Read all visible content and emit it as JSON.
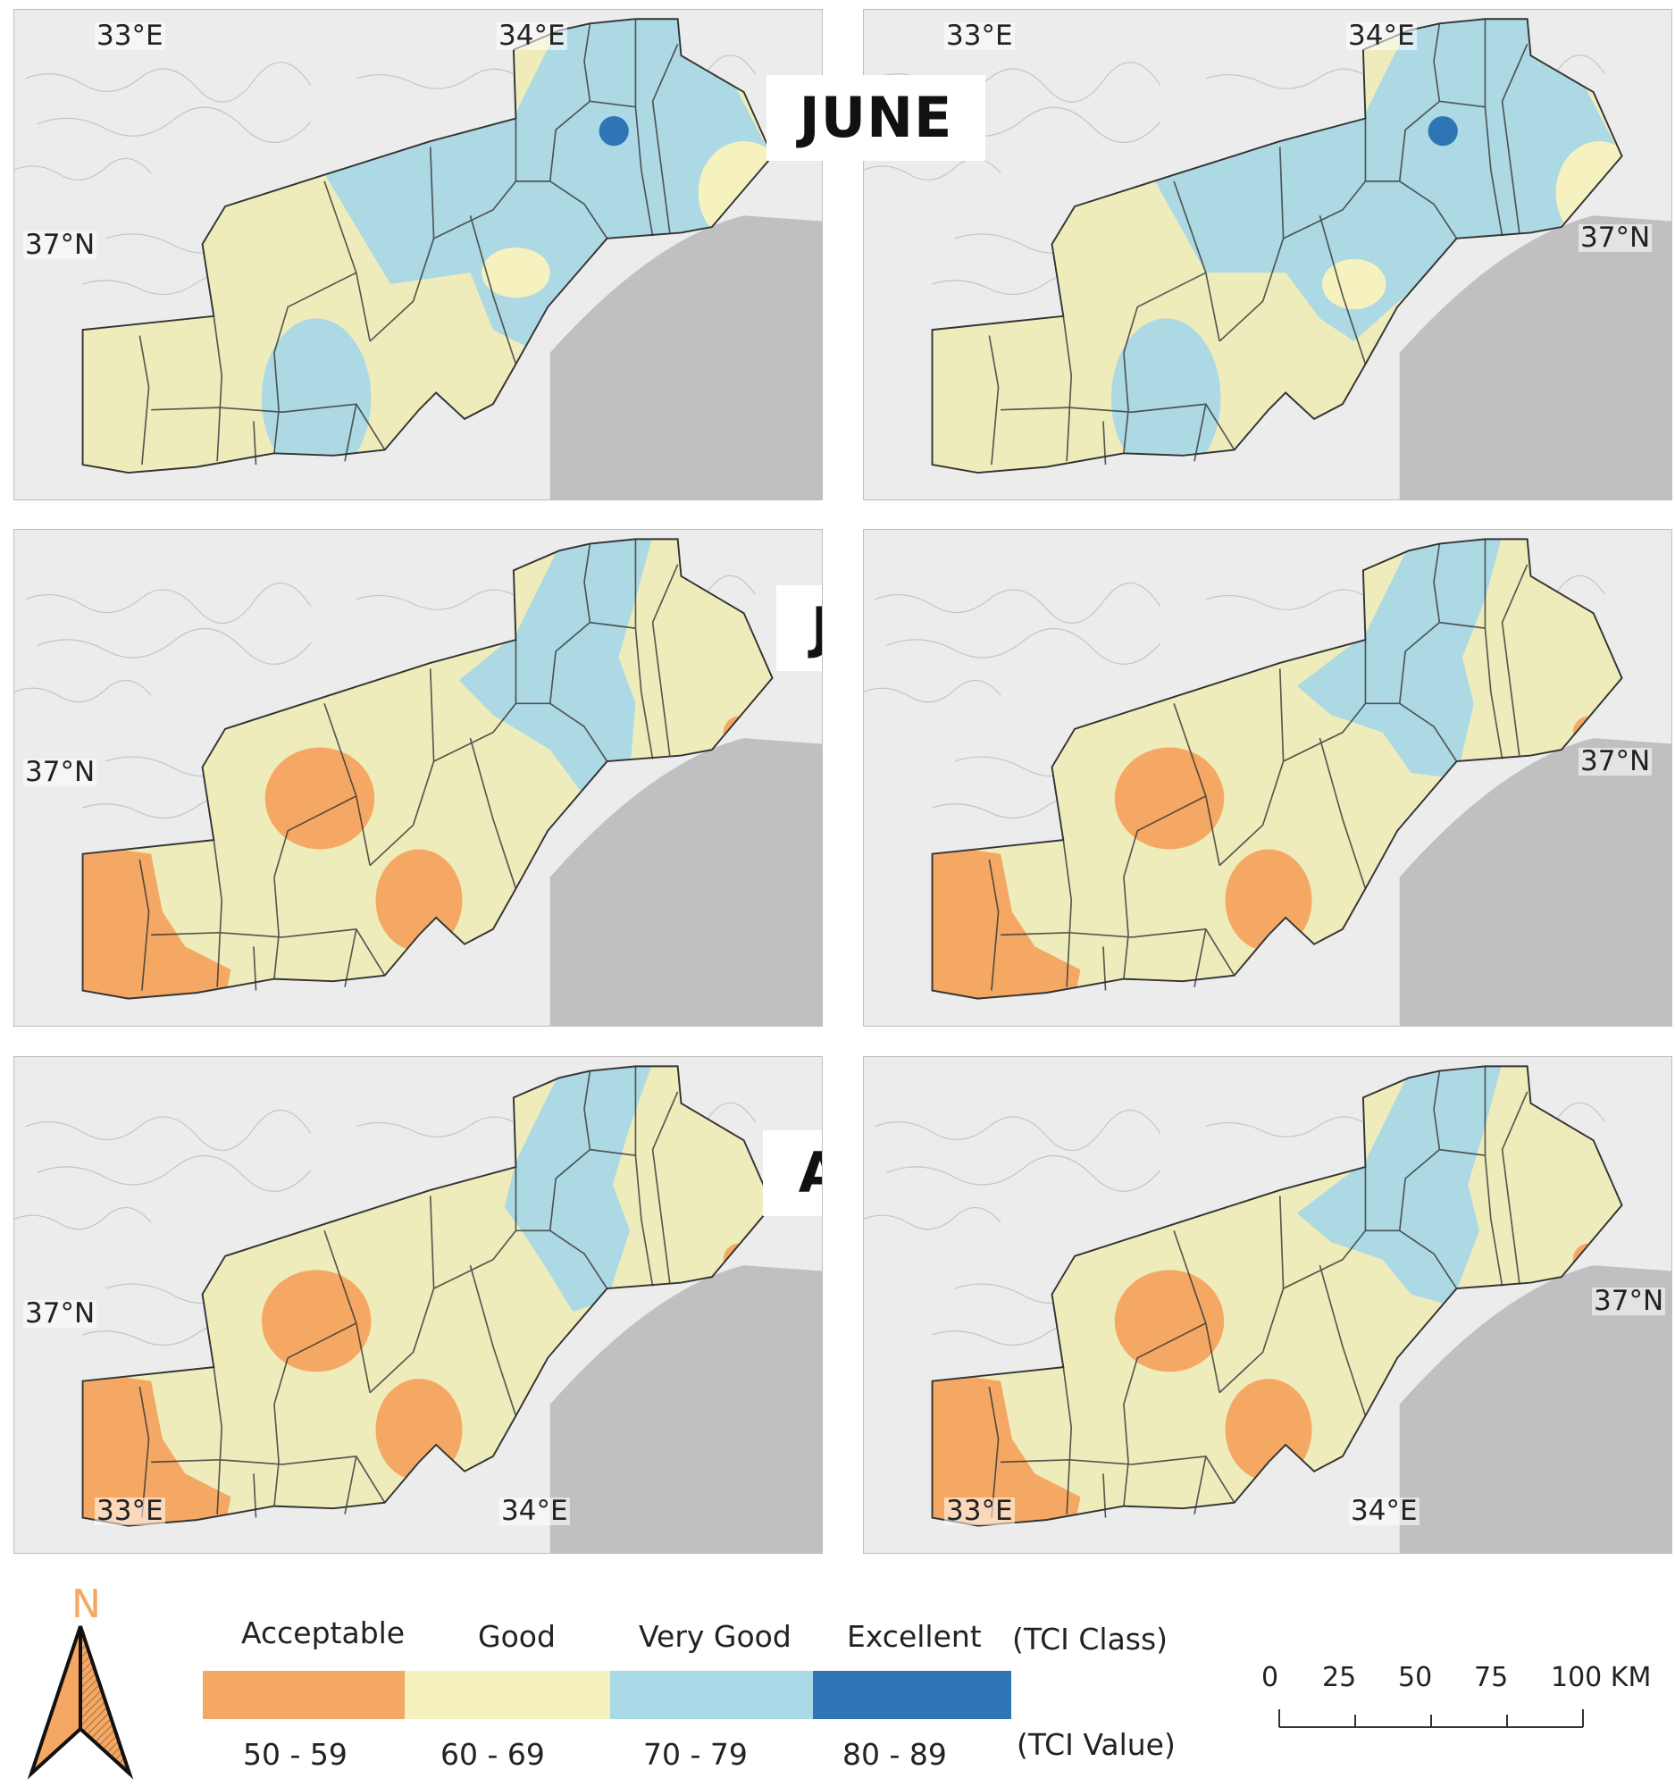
{
  "months": {
    "june": "JUNE",
    "july": "JULY",
    "august": "AUGUST"
  },
  "coords": {
    "lon_33": "33°E",
    "lon_34": "34°E",
    "lat_37": "37°N"
  },
  "legend": {
    "classes": [
      {
        "name": "Acceptable",
        "range": "50 - 59",
        "color": "#f5a864"
      },
      {
        "name": "Good",
        "range": "60 - 69",
        "color": "#f6f2bf"
      },
      {
        "name": "Very Good",
        "range": "70 - 79",
        "color": "#a9d8e6"
      },
      {
        "name": "Excellent",
        "range": "80 - 89",
        "color": "#2e75b6"
      }
    ],
    "class_caption": "(TCI Class)",
    "value_caption": "(TCI Value)"
  },
  "north_arrow": {
    "letter": "N",
    "color": "#f5a864"
  },
  "scale_bar": {
    "ticks": [
      "0",
      "25",
      "50",
      "75"
    ],
    "end_label": "100 KM"
  },
  "colors": {
    "map_background": "#ececec",
    "sea": "#c0c0c0",
    "land_stroke": "#333333"
  }
}
